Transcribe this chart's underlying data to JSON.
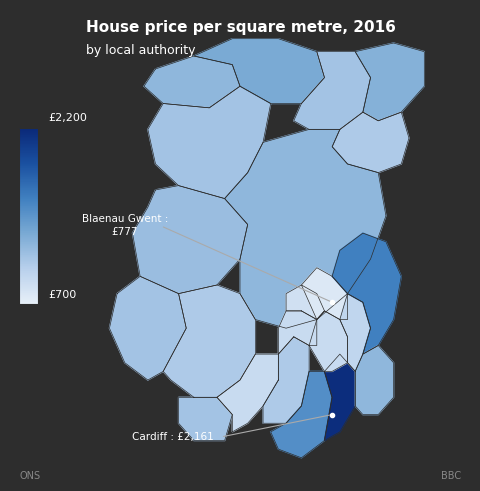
{
  "title_line1": "House price per square metre, 2016",
  "title_line2": "by local authority",
  "background_color": "#2d2d2d",
  "text_color": "#ffffff",
  "colorbar_min": 700,
  "colorbar_max": 2200,
  "colorbar_label_min": "£700",
  "colorbar_label_max": "£2,200",
  "annotation1_label": "Blaenau Gwent :\n£777",
  "annotation2_label": "Cardiff : £2,161",
  "footer_left": "ONS",
  "footer_right": "BBC",
  "cmap_colors": [
    "#d0dff0",
    "#a8c4e0",
    "#80a8d0",
    "#5080b8",
    "#1a4a8c",
    "#0a2060"
  ],
  "wales_authorities": {
    "Isle of Anglesey": {
      "value": 1200,
      "centroid": [
        0.28,
        0.88
      ]
    },
    "Gwynedd": {
      "value": 1100,
      "centroid": [
        0.3,
        0.72
      ]
    },
    "Conwy": {
      "value": 1300,
      "centroid": [
        0.52,
        0.85
      ]
    },
    "Denbighshire": {
      "value": 1100,
      "centroid": [
        0.6,
        0.78
      ]
    },
    "Flintshire": {
      "value": 1250,
      "centroid": [
        0.72,
        0.82
      ]
    },
    "Wrexham": {
      "value": 1050,
      "centroid": [
        0.76,
        0.74
      ]
    },
    "Ceredigion": {
      "value": 1150,
      "centroid": [
        0.25,
        0.52
      ]
    },
    "Powys": {
      "value": 1200,
      "centroid": [
        0.55,
        0.55
      ]
    },
    "Pembrokeshire": {
      "value": 1100,
      "centroid": [
        0.14,
        0.32
      ]
    },
    "Carmarthenshire": {
      "value": 1050,
      "centroid": [
        0.32,
        0.28
      ]
    },
    "Swansea": {
      "value": 1100,
      "centroid": [
        0.32,
        0.18
      ]
    },
    "Neath Port Talbot": {
      "value": 900,
      "centroid": [
        0.42,
        0.2
      ]
    },
    "Bridgend": {
      "value": 1050,
      "centroid": [
        0.52,
        0.15
      ]
    },
    "Vale of Glamorgan": {
      "value": 1500,
      "centroid": [
        0.56,
        0.08
      ]
    },
    "Cardiff": {
      "value": 2161,
      "centroid": [
        0.64,
        0.12
      ]
    },
    "Rhondda Cynon Taf": {
      "value": 900,
      "centroid": [
        0.53,
        0.22
      ]
    },
    "Merthyr Tydfil": {
      "value": 850,
      "centroid": [
        0.6,
        0.26
      ]
    },
    "Caerphilly": {
      "value": 900,
      "centroid": [
        0.64,
        0.2
      ]
    },
    "Blaenau Gwent": {
      "value": 777,
      "centroid": [
        0.68,
        0.28
      ]
    },
    "Torfaen": {
      "value": 950,
      "centroid": [
        0.73,
        0.22
      ]
    },
    "Monmouthshire": {
      "value": 1600,
      "centroid": [
        0.8,
        0.25
      ]
    },
    "Newport": {
      "value": 1200,
      "centroid": [
        0.78,
        0.15
      ]
    }
  }
}
